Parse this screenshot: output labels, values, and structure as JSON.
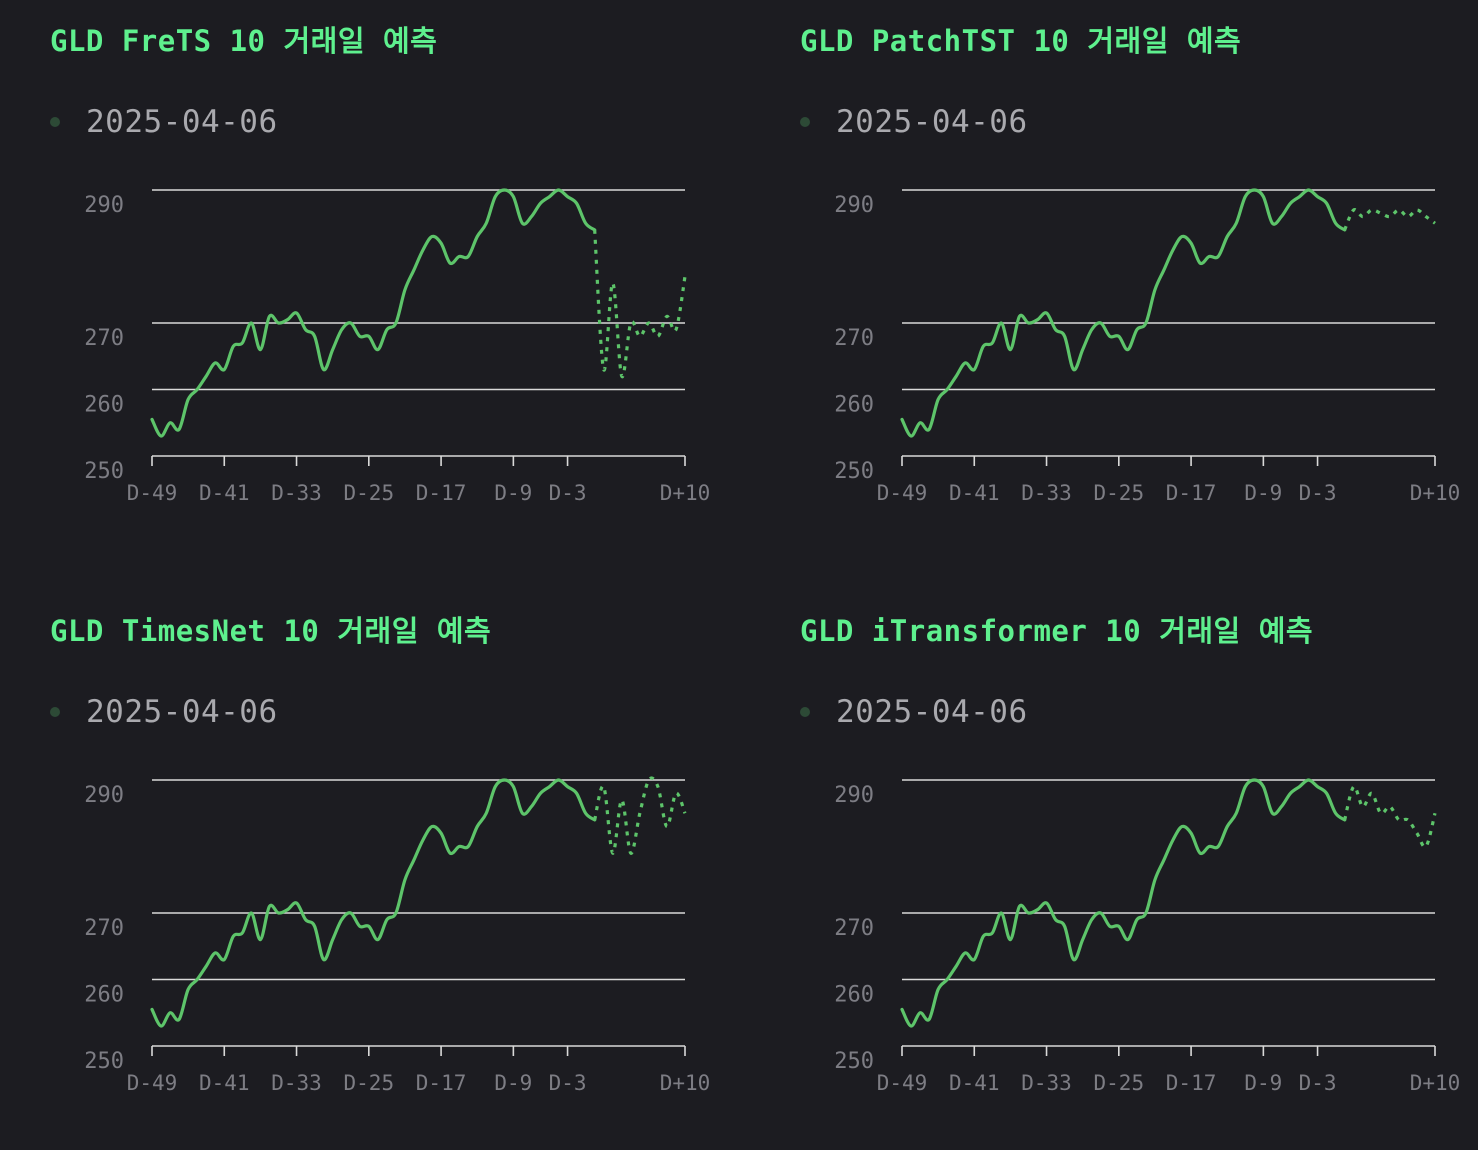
{
  "chart_data": [
    {
      "type": "line",
      "title": "GLD FreTS 10 거래일 예측",
      "legend": [
        "2025-04-06"
      ],
      "legend_position": "top-left",
      "y_ticks": [
        250,
        260,
        270,
        290
      ],
      "ylim": [
        250,
        290
      ],
      "x_tick_labels": [
        "D-49",
        "D-41",
        "D-33",
        "D-25",
        "D-17",
        "D-9",
        "D-3",
        "D+10"
      ],
      "x_tick_positions": [
        -49,
        -41,
        -33,
        -25,
        -17,
        -9,
        -3,
        10
      ],
      "xlim": [
        -49,
        10
      ],
      "grid": true,
      "series": [
        {
          "name": "2025-04-06",
          "x": [
            -49,
            -48,
            -47,
            -46,
            -45,
            -44,
            -43,
            -42,
            -41,
            -40,
            -39,
            -38,
            -37,
            -36,
            -35,
            -34,
            -33,
            -32,
            -31,
            -30,
            -29,
            -28,
            -27,
            -26,
            -25,
            -24,
            -23,
            -22,
            -21,
            -20,
            -19,
            -18,
            -17,
            -16,
            -15,
            -14,
            -13,
            -12,
            -11,
            -10,
            -9,
            -8,
            -7,
            -6,
            -5,
            -4,
            -3,
            -2,
            -1,
            0
          ],
          "values": [
            255.5,
            253,
            255,
            254,
            258.5,
            260,
            262,
            264,
            263,
            266.5,
            267,
            270,
            266,
            271,
            270,
            270.5,
            271.5,
            269,
            268,
            263,
            266,
            269,
            270,
            268,
            268,
            266,
            269,
            270,
            275,
            278,
            281,
            283,
            282,
            279,
            280,
            280,
            283,
            285,
            289,
            290,
            289,
            285,
            286,
            288,
            289,
            290,
            289,
            288,
            285,
            284
          ]
        },
        {
          "name": "FreTS",
          "forecast": true,
          "x": [
            0,
            1,
            2,
            3,
            4,
            5,
            6,
            7,
            8,
            9,
            10
          ],
          "values": [
            284,
            263,
            276,
            262,
            270,
            268,
            270,
            268,
            271,
            269,
            277
          ]
        }
      ]
    },
    {
      "type": "line",
      "title": "GLD PatchTST 10 거래일 예측",
      "legend": [
        "2025-04-06"
      ],
      "legend_position": "top-left",
      "y_ticks": [
        250,
        260,
        270,
        290
      ],
      "ylim": [
        250,
        290
      ],
      "x_tick_labels": [
        "D-49",
        "D-41",
        "D-33",
        "D-25",
        "D-17",
        "D-9",
        "D-3",
        "D+10"
      ],
      "x_tick_positions": [
        -49,
        -41,
        -33,
        -25,
        -17,
        -9,
        -3,
        10
      ],
      "xlim": [
        -49,
        10
      ],
      "grid": true,
      "series": [
        {
          "name": "2025-04-06",
          "x": [
            -49,
            -48,
            -47,
            -46,
            -45,
            -44,
            -43,
            -42,
            -41,
            -40,
            -39,
            -38,
            -37,
            -36,
            -35,
            -34,
            -33,
            -32,
            -31,
            -30,
            -29,
            -28,
            -27,
            -26,
            -25,
            -24,
            -23,
            -22,
            -21,
            -20,
            -19,
            -18,
            -17,
            -16,
            -15,
            -14,
            -13,
            -12,
            -11,
            -10,
            -9,
            -8,
            -7,
            -6,
            -5,
            -4,
            -3,
            -2,
            -1,
            0
          ],
          "values": [
            255.5,
            253,
            255,
            254,
            258.5,
            260,
            262,
            264,
            263,
            266.5,
            267,
            270,
            266,
            271,
            270,
            270.5,
            271.5,
            269,
            268,
            263,
            266,
            269,
            270,
            268,
            268,
            266,
            269,
            270,
            275,
            278,
            281,
            283,
            282,
            279,
            280,
            280,
            283,
            285,
            289,
            290,
            289,
            285,
            286,
            288,
            289,
            290,
            289,
            288,
            285,
            284
          ]
        },
        {
          "name": "PatchTST",
          "forecast": true,
          "x": [
            0,
            1,
            2,
            3,
            4,
            5,
            6,
            7,
            8,
            9,
            10
          ],
          "values": [
            284,
            287,
            286,
            287,
            286.5,
            286,
            287,
            286,
            287,
            286,
            285
          ]
        }
      ]
    },
    {
      "type": "line",
      "title": "GLD TimesNet 10 거래일 예측",
      "legend": [
        "2025-04-06"
      ],
      "legend_position": "top-left",
      "y_ticks": [
        250,
        260,
        270,
        290
      ],
      "ylim": [
        250,
        290
      ],
      "x_tick_labels": [
        "D-49",
        "D-41",
        "D-33",
        "D-25",
        "D-17",
        "D-9",
        "D-3",
        "D+10"
      ],
      "x_tick_positions": [
        -49,
        -41,
        -33,
        -25,
        -17,
        -9,
        -3,
        10
      ],
      "xlim": [
        -49,
        10
      ],
      "grid": true,
      "series": [
        {
          "name": "2025-04-06",
          "x": [
            -49,
            -48,
            -47,
            -46,
            -45,
            -44,
            -43,
            -42,
            -41,
            -40,
            -39,
            -38,
            -37,
            -36,
            -35,
            -34,
            -33,
            -32,
            -31,
            -30,
            -29,
            -28,
            -27,
            -26,
            -25,
            -24,
            -23,
            -22,
            -21,
            -20,
            -19,
            -18,
            -17,
            -16,
            -15,
            -14,
            -13,
            -12,
            -11,
            -10,
            -9,
            -8,
            -7,
            -6,
            -5,
            -4,
            -3,
            -2,
            -1,
            0
          ],
          "values": [
            255.5,
            253,
            255,
            254,
            258.5,
            260,
            262,
            264,
            263,
            266.5,
            267,
            270,
            266,
            271,
            270,
            270.5,
            271.5,
            269,
            268,
            263,
            266,
            269,
            270,
            268,
            268,
            266,
            269,
            270,
            275,
            278,
            281,
            283,
            282,
            279,
            280,
            280,
            283,
            285,
            289,
            290,
            289,
            285,
            286,
            288,
            289,
            290,
            289,
            288,
            285,
            284
          ]
        },
        {
          "name": "TimesNet",
          "forecast": true,
          "x": [
            0,
            1,
            2,
            3,
            4,
            5,
            6,
            7,
            8,
            9,
            10
          ],
          "values": [
            284,
            289,
            279,
            287,
            279,
            285,
            290,
            289,
            283,
            288,
            285
          ]
        }
      ]
    },
    {
      "type": "line",
      "title": "GLD iTransformer 10 거래일 예측",
      "legend": [
        "2025-04-06"
      ],
      "legend_position": "top-left",
      "y_ticks": [
        250,
        260,
        270,
        290
      ],
      "ylim": [
        250,
        290
      ],
      "x_tick_labels": [
        "D-49",
        "D-41",
        "D-33",
        "D-25",
        "D-17",
        "D-9",
        "D-3",
        "D+10"
      ],
      "x_tick_positions": [
        -49,
        -41,
        -33,
        -25,
        -17,
        -9,
        -3,
        10
      ],
      "xlim": [
        -49,
        10
      ],
      "grid": true,
      "series": [
        {
          "name": "2025-04-06",
          "x": [
            -49,
            -48,
            -47,
            -46,
            -45,
            -44,
            -43,
            -42,
            -41,
            -40,
            -39,
            -38,
            -37,
            -36,
            -35,
            -34,
            -33,
            -32,
            -31,
            -30,
            -29,
            -28,
            -27,
            -26,
            -25,
            -24,
            -23,
            -22,
            -21,
            -20,
            -19,
            -18,
            -17,
            -16,
            -15,
            -14,
            -13,
            -12,
            -11,
            -10,
            -9,
            -8,
            -7,
            -6,
            -5,
            -4,
            -3,
            -2,
            -1,
            0
          ],
          "values": [
            255.5,
            253,
            255,
            254,
            258.5,
            260,
            262,
            264,
            263,
            266.5,
            267,
            270,
            266,
            271,
            270,
            270.5,
            271.5,
            269,
            268,
            263,
            266,
            269,
            270,
            268,
            268,
            266,
            269,
            270,
            275,
            278,
            281,
            283,
            282,
            279,
            280,
            280,
            283,
            285,
            289,
            290,
            289,
            285,
            286,
            288,
            289,
            290,
            289,
            288,
            285,
            284
          ]
        },
        {
          "name": "iTransformer",
          "forecast": true,
          "x": [
            0,
            1,
            2,
            3,
            4,
            5,
            6,
            7,
            8,
            9,
            10
          ],
          "values": [
            284,
            289,
            286,
            288,
            285,
            286,
            284,
            284,
            282,
            280,
            285
          ]
        }
      ]
    }
  ],
  "colors": {
    "title": "#5ef08e",
    "series": "#5dc46a",
    "legend_dot": "#2d4a36",
    "grid": "#d9d9d9",
    "tick_label": "#7d7d84",
    "background": "#1c1c21"
  }
}
